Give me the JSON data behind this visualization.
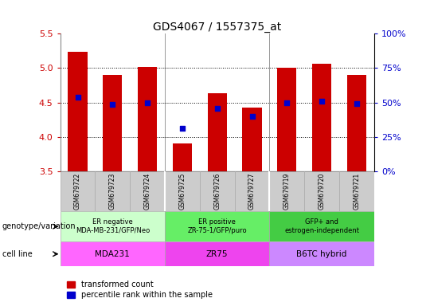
{
  "title": "GDS4067 / 1557375_at",
  "samples": [
    "GSM679722",
    "GSM679723",
    "GSM679724",
    "GSM679725",
    "GSM679726",
    "GSM679727",
    "GSM679719",
    "GSM679720",
    "GSM679721"
  ],
  "bar_tops": [
    5.24,
    4.9,
    5.02,
    3.9,
    4.63,
    4.43,
    5.0,
    5.06,
    4.9
  ],
  "bar_bottom": 3.5,
  "percentile_y": [
    4.58,
    4.47,
    4.5,
    4.12,
    4.42,
    4.3,
    4.5,
    4.52,
    4.49
  ],
  "bar_color": "#cc0000",
  "dot_color": "#0000cc",
  "ylim": [
    3.5,
    5.5
  ],
  "yticks_left": [
    3.5,
    4.0,
    4.5,
    5.0,
    5.5
  ],
  "yticks_right_pct": [
    0,
    25,
    50,
    75,
    100
  ],
  "groups": [
    {
      "label": "ER negative\nMDA-MB-231/GFP/Neo",
      "start": 0,
      "end": 3,
      "color": "#ccffcc"
    },
    {
      "label": "ER positive\nZR-75-1/GFP/puro",
      "start": 3,
      "end": 6,
      "color": "#66ee66"
    },
    {
      "label": "GFP+ and\nestrogen-independent",
      "start": 6,
      "end": 9,
      "color": "#44cc44"
    }
  ],
  "cell_lines": [
    {
      "label": "MDA231",
      "start": 0,
      "end": 3,
      "color": "#ff66ff"
    },
    {
      "label": "ZR75",
      "start": 3,
      "end": 6,
      "color": "#ee44ee"
    },
    {
      "label": "B6TC hybrid",
      "start": 6,
      "end": 9,
      "color": "#cc88ff"
    }
  ],
  "genotype_label": "genotype/variation",
  "cellline_label": "cell line",
  "legend_bar": "transformed count",
  "legend_dot": "percentile rank within the sample",
  "bar_width": 0.55,
  "tick_color_left": "#cc0000",
  "tick_color_right": "#0000cc",
  "sample_box_color": "#cccccc",
  "sample_box_edge": "#aaaaaa"
}
